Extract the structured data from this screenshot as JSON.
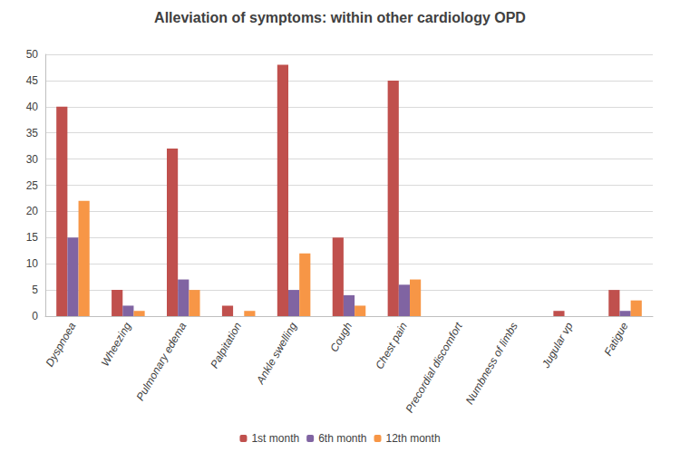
{
  "chart_data": {
    "type": "bar",
    "title": "Alleviation of symptoms: within other cardiology OPD",
    "categories": [
      "Dyspnoea",
      "Wheezing",
      "Pulmonary edema",
      "Palpitation",
      "Ankle swelling",
      "Cough",
      "Chest pain",
      "Precordial discomfort",
      "Numbness of limbs",
      "Jugular vp",
      "Fatigue"
    ],
    "series": [
      {
        "name": "1st month",
        "color": "#c0504d",
        "values": [
          40,
          5,
          32,
          2,
          48,
          15,
          45,
          0,
          0,
          1,
          5
        ]
      },
      {
        "name": "6th month",
        "color": "#8064a2",
        "values": [
          15,
          2,
          7,
          0,
          5,
          4,
          6,
          0,
          0,
          0,
          1
        ]
      },
      {
        "name": "12th month",
        "color": "#f79646",
        "values": [
          22,
          1,
          5,
          1,
          12,
          2,
          7,
          0,
          0,
          0,
          3
        ]
      }
    ],
    "ylim": [
      0,
      50
    ],
    "yticks": [
      0,
      5,
      10,
      15,
      20,
      25,
      30,
      35,
      40,
      45,
      50
    ],
    "grid": true,
    "legend": "bottom"
  }
}
